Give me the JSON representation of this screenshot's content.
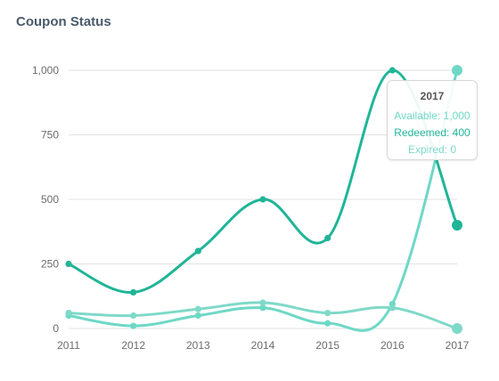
{
  "card": {
    "title": "Coupon Status"
  },
  "colors": {
    "redeemed": "#20b597",
    "available": "#6ed8c6",
    "expired": "#7fd9c9",
    "grid": "#e2e2e2",
    "axis_text": "#6b6b6b"
  },
  "tooltip": {
    "title": "2017",
    "rows": [
      {
        "text": "Available: 1,000",
        "series": "available"
      },
      {
        "text": "Redeemed: 400",
        "series": "redeemed"
      },
      {
        "text": "Expired: 0",
        "series": "expired"
      }
    ]
  },
  "chart_data": {
    "type": "line",
    "title": "Coupon Status",
    "x": [
      "2011",
      "2012",
      "2013",
      "2014",
      "2015",
      "2016",
      "2017"
    ],
    "y_ticks": [
      0,
      250,
      500,
      750,
      1000
    ],
    "y_tick_labels": [
      "0",
      "250",
      "500",
      "750",
      "1,000"
    ],
    "ylim": [
      0,
      1000
    ],
    "grid": true,
    "highlight_index": 6,
    "series": [
      {
        "name": "Available",
        "key": "available",
        "values": [
          50,
          10,
          50,
          80,
          20,
          95,
          1000
        ]
      },
      {
        "name": "Redeemed",
        "key": "redeemed",
        "values": [
          250,
          140,
          300,
          500,
          350,
          1000,
          400
        ]
      },
      {
        "name": "Expired",
        "key": "expired",
        "values": [
          60,
          50,
          75,
          100,
          60,
          80,
          0
        ]
      }
    ]
  }
}
